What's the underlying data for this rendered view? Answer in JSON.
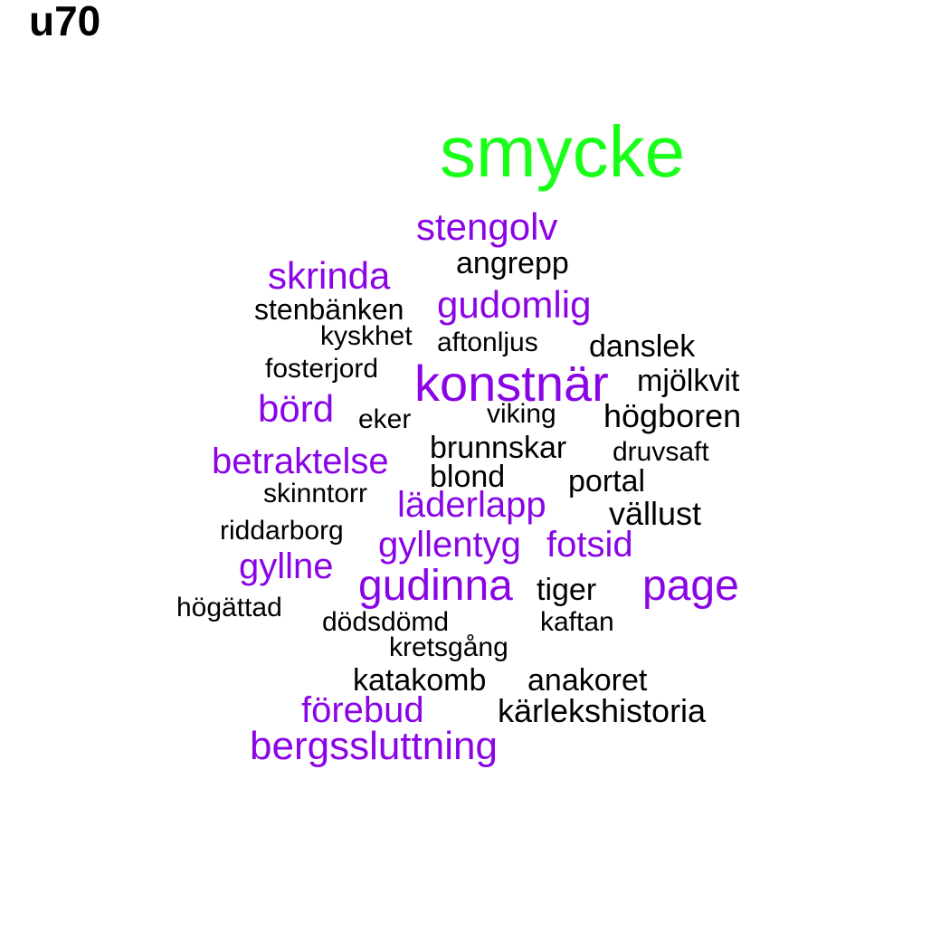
{
  "title": "u70",
  "colors": {
    "highlight": "#1aff1a",
    "accent": "#8a05e6",
    "text": "#000000"
  },
  "words": [
    {
      "text": "smycke",
      "color": "highlight"
    },
    {
      "text": "stengolv",
      "color": "accent"
    },
    {
      "text": "angrepp",
      "color": "text"
    },
    {
      "text": "skrinda",
      "color": "accent"
    },
    {
      "text": "gudomlig",
      "color": "accent"
    },
    {
      "text": "stenbänken",
      "color": "text"
    },
    {
      "text": "kyskhet",
      "color": "text"
    },
    {
      "text": "aftonljus",
      "color": "text"
    },
    {
      "text": "danslek",
      "color": "text"
    },
    {
      "text": "fosterjord",
      "color": "text"
    },
    {
      "text": "konstnär",
      "color": "accent"
    },
    {
      "text": "mjölkvit",
      "color": "text"
    },
    {
      "text": "börd",
      "color": "accent"
    },
    {
      "text": "eker",
      "color": "text"
    },
    {
      "text": "viking",
      "color": "text"
    },
    {
      "text": "högboren",
      "color": "text"
    },
    {
      "text": "brunnskar",
      "color": "text"
    },
    {
      "text": "druvsaft",
      "color": "text"
    },
    {
      "text": "betraktelse",
      "color": "accent"
    },
    {
      "text": "blond",
      "color": "text"
    },
    {
      "text": "portal",
      "color": "text"
    },
    {
      "text": "skinntorr",
      "color": "text"
    },
    {
      "text": "läderlapp",
      "color": "accent"
    },
    {
      "text": "vällust",
      "color": "text"
    },
    {
      "text": "riddarborg",
      "color": "text"
    },
    {
      "text": "gyllentyg",
      "color": "accent"
    },
    {
      "text": "fotsid",
      "color": "accent"
    },
    {
      "text": "gyllne",
      "color": "accent"
    },
    {
      "text": "gudinna",
      "color": "accent"
    },
    {
      "text": "page",
      "color": "accent"
    },
    {
      "text": "tiger",
      "color": "text"
    },
    {
      "text": "högättad",
      "color": "text"
    },
    {
      "text": "dödsdömd",
      "color": "text"
    },
    {
      "text": "kaftan",
      "color": "text"
    },
    {
      "text": "kretsgång",
      "color": "text"
    },
    {
      "text": "katakomb",
      "color": "text"
    },
    {
      "text": "anakoret",
      "color": "text"
    },
    {
      "text": "förebud",
      "color": "accent"
    },
    {
      "text": "kärlekshistoria",
      "color": "text"
    },
    {
      "text": "bergssluttning",
      "color": "accent"
    }
  ]
}
